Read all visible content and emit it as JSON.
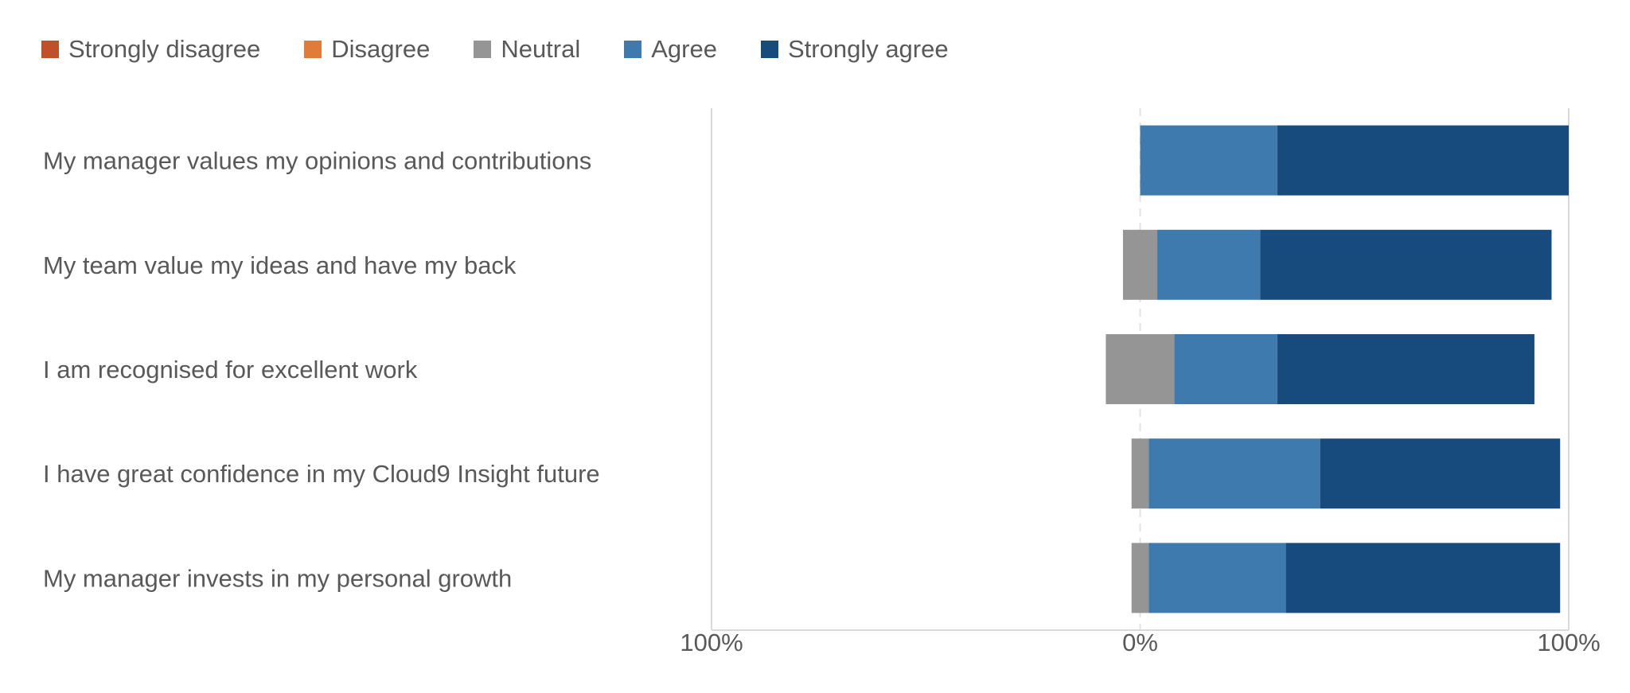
{
  "chart_data": {
    "type": "bar",
    "orientation": "horizontal",
    "stacked": "diverging",
    "categories": [
      "My manager values my opinions and contributions",
      "My team value my ideas and have my back",
      "I am recognised for excellent work",
      "I have great confidence in my Cloud9 Insight future",
      "My manager invests in my personal growth"
    ],
    "series": [
      {
        "name": "Strongly disagree",
        "color": "#C0502A",
        "values": [
          0,
          0,
          0,
          0,
          0
        ]
      },
      {
        "name": "Disagree",
        "color": "#E07B39",
        "values": [
          0,
          0,
          0,
          0,
          0
        ]
      },
      {
        "name": "Neutral",
        "color": "#959595",
        "values": [
          0,
          8,
          16,
          4,
          4
        ]
      },
      {
        "name": "Agree",
        "color": "#3F7AAE",
        "values": [
          32,
          24,
          24,
          40,
          32
        ]
      },
      {
        "name": "Strongly agree",
        "color": "#184B7D",
        "values": [
          68,
          68,
          60,
          56,
          64
        ]
      }
    ],
    "neutral_split": "centered",
    "xlim": [
      -100,
      100
    ],
    "xticks": [
      "100%",
      "0%",
      "100%"
    ],
    "grid": true,
    "legend_position": "top-left"
  }
}
